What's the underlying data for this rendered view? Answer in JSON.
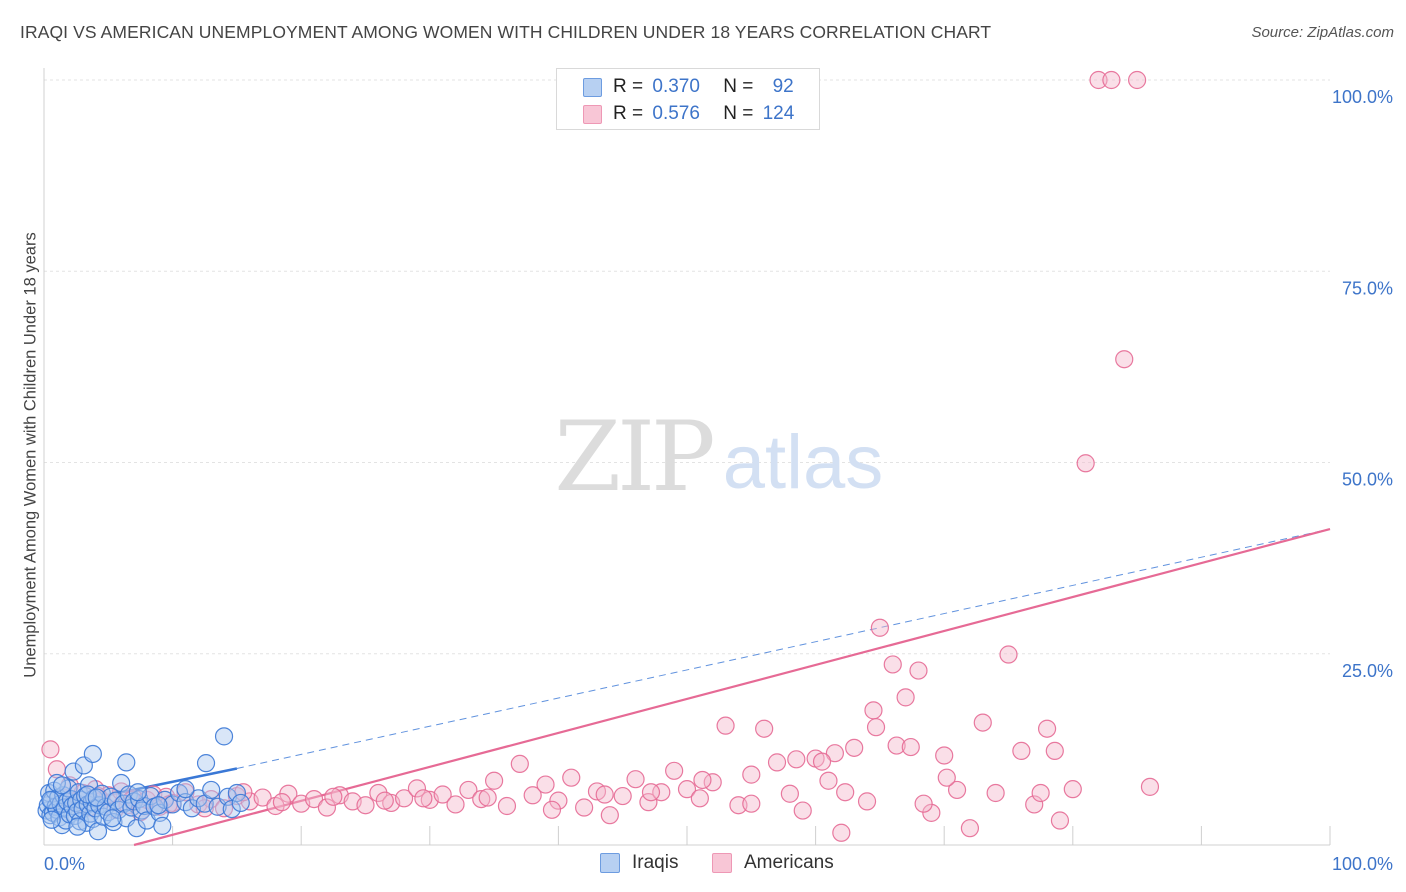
{
  "title": "IRAQI VS AMERICAN UNEMPLOYMENT AMONG WOMEN WITH CHILDREN UNDER 18 YEARS CORRELATION CHART",
  "source": "Source: ZipAtlas.com",
  "watermark": {
    "zip": "ZIP",
    "atlas": "atlas"
  },
  "colors": {
    "blue": "#3a78d6",
    "blue_fill": "#aac8f0",
    "pink": "#e66a95",
    "pink_fill": "#f5b8cc",
    "tick": "#3d74c9",
    "grid": "#e3e3e3"
  },
  "legend_top": {
    "rows": [
      {
        "r_label": "R =",
        "r_value": "0.370",
        "n_label": "N =",
        "n_value": "92"
      },
      {
        "r_label": "R =",
        "r_value": "0.576",
        "n_label": "N =",
        "n_value": "124"
      }
    ]
  },
  "legend_bottom": {
    "series": [
      {
        "label": "Iraqis"
      },
      {
        "label": "Americans"
      }
    ]
  },
  "chart_data": {
    "type": "scatter",
    "title": "IRAQI VS AMERICAN UNEMPLOYMENT AMONG WOMEN WITH CHILDREN UNDER 18 YEARS CORRELATION CHART",
    "xlabel": "",
    "ylabel": "Unemployment Among Women with Children Under 18 years",
    "xlim": [
      0,
      100
    ],
    "ylim": [
      0,
      100
    ],
    "x_tick_labels": [
      {
        "value": 0,
        "label": "0.0%"
      },
      {
        "value": 100,
        "label": "100.0%"
      }
    ],
    "y_tick_labels": [
      {
        "value": 25,
        "label": "25.0%"
      },
      {
        "value": 50,
        "label": "50.0%"
      },
      {
        "value": 75,
        "label": "75.0%"
      },
      {
        "value": 100,
        "label": "100.0%"
      }
    ],
    "series": [
      {
        "name": "Iraqis",
        "r": 0.37,
        "n": 92,
        "trend": {
          "x0": 0,
          "y0": 4.8,
          "x1": 15,
          "y1": 10.0,
          "dashed_extension_to": {
            "x": 100,
            "y": 41.3
          }
        },
        "points": [
          [
            0.2,
            4.5
          ],
          [
            0.3,
            5.2
          ],
          [
            0.4,
            6.8
          ],
          [
            0.5,
            3.9
          ],
          [
            0.6,
            5.8
          ],
          [
            0.7,
            4.2
          ],
          [
            0.8,
            7.1
          ],
          [
            0.9,
            5.0
          ],
          [
            1.0,
            4.6
          ],
          [
            1.1,
            6.2
          ],
          [
            1.2,
            3.6
          ],
          [
            1.3,
            5.4
          ],
          [
            1.4,
            2.6
          ],
          [
            1.5,
            6.5
          ],
          [
            1.6,
            4.9
          ],
          [
            1.7,
            3.2
          ],
          [
            1.8,
            5.7
          ],
          [
            1.9,
            7.4
          ],
          [
            2.0,
            4.0
          ],
          [
            2.1,
            6.0
          ],
          [
            2.2,
            5.1
          ],
          [
            2.3,
            9.6
          ],
          [
            2.4,
            3.8
          ],
          [
            2.5,
            5.5
          ],
          [
            2.6,
            4.4
          ],
          [
            2.7,
            6.9
          ],
          [
            2.8,
            3.1
          ],
          [
            2.9,
            5.9
          ],
          [
            3.0,
            4.7
          ],
          [
            3.1,
            10.4
          ],
          [
            3.2,
            6.4
          ],
          [
            3.3,
            2.9
          ],
          [
            3.4,
            5.3
          ],
          [
            3.5,
            7.8
          ],
          [
            3.6,
            4.1
          ],
          [
            3.7,
            5.6
          ],
          [
            3.8,
            3.4
          ],
          [
            3.9,
            6.1
          ],
          [
            4.0,
            4.8
          ],
          [
            4.2,
            1.8
          ],
          [
            4.3,
            5.2
          ],
          [
            4.5,
            6.7
          ],
          [
            4.6,
            3.7
          ],
          [
            4.8,
            5.0
          ],
          [
            5.0,
            4.3
          ],
          [
            5.2,
            6.3
          ],
          [
            5.4,
            3.0
          ],
          [
            5.6,
            5.8
          ],
          [
            5.8,
            4.6
          ],
          [
            6.0,
            8.1
          ],
          [
            6.2,
            5.4
          ],
          [
            6.4,
            3.5
          ],
          [
            6.6,
            6.6
          ],
          [
            6.8,
            4.9
          ],
          [
            7.0,
            5.7
          ],
          [
            7.2,
            2.2
          ],
          [
            7.4,
            6.0
          ],
          [
            7.6,
            4.5
          ],
          [
            7.8,
            5.1
          ],
          [
            8.0,
            3.2
          ],
          [
            8.3,
            6.4
          ],
          [
            8.6,
            5.0
          ],
          [
            9.0,
            4.2
          ],
          [
            9.4,
            5.9
          ],
          [
            10.0,
            5.3
          ],
          [
            10.5,
            6.8
          ],
          [
            11.0,
            5.6
          ],
          [
            11.5,
            4.8
          ],
          [
            12.0,
            6.1
          ],
          [
            12.5,
            5.4
          ],
          [
            13.0,
            7.2
          ],
          [
            13.5,
            5.0
          ],
          [
            14.0,
            14.2
          ],
          [
            14.3,
            6.3
          ],
          [
            14.6,
            4.7
          ],
          [
            15.0,
            6.8
          ],
          [
            15.3,
            5.5
          ],
          [
            3.8,
            11.9
          ],
          [
            9.2,
            2.5
          ],
          [
            1.0,
            8.1
          ],
          [
            6.4,
            10.8
          ],
          [
            3.4,
            6.6
          ],
          [
            0.5,
            5.9
          ],
          [
            0.6,
            3.3
          ],
          [
            1.4,
            7.8
          ],
          [
            2.6,
            2.4
          ],
          [
            4.1,
            6.2
          ],
          [
            5.3,
            3.5
          ],
          [
            7.3,
            6.9
          ],
          [
            8.9,
            5.2
          ],
          [
            12.6,
            10.7
          ],
          [
            11.0,
            7.3
          ]
        ]
      },
      {
        "name": "Americans",
        "r": 0.576,
        "n": 124,
        "trend": {
          "x0": 7,
          "y0": 0,
          "x1": 100,
          "y1": 41.3
        },
        "points": [
          [
            0.5,
            12.5
          ],
          [
            1.0,
            9.9
          ],
          [
            1.5,
            6.2
          ],
          [
            2.0,
            7.8
          ],
          [
            2.5,
            5.4
          ],
          [
            3.0,
            6.8
          ],
          [
            3.5,
            4.9
          ],
          [
            4.0,
            7.3
          ],
          [
            4.5,
            5.8
          ],
          [
            5.0,
            6.5
          ],
          [
            5.5,
            4.6
          ],
          [
            6.0,
            7.0
          ],
          [
            6.5,
            5.2
          ],
          [
            7.0,
            6.1
          ],
          [
            7.5,
            4.3
          ],
          [
            8.0,
            5.9
          ],
          [
            8.5,
            6.6
          ],
          [
            9.0,
            5.0
          ],
          [
            9.5,
            6.3
          ],
          [
            10.0,
            5.5
          ],
          [
            11.0,
            6.9
          ],
          [
            12.0,
            5.3
          ],
          [
            13.0,
            6.0
          ],
          [
            14.0,
            4.8
          ],
          [
            15.0,
            6.4
          ],
          [
            16.0,
            5.7
          ],
          [
            17.0,
            6.2
          ],
          [
            18.0,
            5.1
          ],
          [
            19.0,
            6.7
          ],
          [
            20.0,
            5.4
          ],
          [
            21.0,
            6.0
          ],
          [
            22.0,
            4.9
          ],
          [
            23.0,
            6.5
          ],
          [
            24.0,
            5.7
          ],
          [
            25.0,
            5.2
          ],
          [
            26.0,
            6.8
          ],
          [
            27.0,
            5.5
          ],
          [
            28.0,
            6.1
          ],
          [
            29.0,
            7.4
          ],
          [
            30.0,
            5.9
          ],
          [
            31.0,
            6.6
          ],
          [
            32.0,
            5.3
          ],
          [
            33.0,
            7.2
          ],
          [
            34.0,
            6.0
          ],
          [
            35.0,
            8.4
          ],
          [
            36.0,
            5.1
          ],
          [
            37.0,
            10.6
          ],
          [
            38.0,
            6.5
          ],
          [
            39.0,
            7.9
          ],
          [
            40.0,
            5.8
          ],
          [
            41.0,
            8.8
          ],
          [
            42.0,
            4.9
          ],
          [
            43.0,
            7.0
          ],
          [
            44.0,
            3.9
          ],
          [
            45.0,
            6.4
          ],
          [
            46.0,
            8.6
          ],
          [
            47.0,
            5.6
          ],
          [
            48.0,
            6.9
          ],
          [
            49.0,
            9.7
          ],
          [
            50.0,
            7.3
          ],
          [
            51.0,
            6.1
          ],
          [
            52.0,
            8.2
          ],
          [
            53.0,
            15.6
          ],
          [
            54.0,
            5.2
          ],
          [
            55.0,
            9.2
          ],
          [
            56.0,
            15.2
          ],
          [
            57.0,
            10.8
          ],
          [
            58.0,
            6.7
          ],
          [
            59.0,
            4.5
          ],
          [
            60.0,
            11.3
          ],
          [
            61.0,
            8.4
          ],
          [
            62.0,
            1.6
          ],
          [
            63.0,
            12.7
          ],
          [
            64.0,
            5.7
          ],
          [
            65.0,
            28.4
          ],
          [
            66.0,
            23.6
          ],
          [
            67.0,
            19.3
          ],
          [
            68.0,
            22.8
          ],
          [
            69.0,
            4.2
          ],
          [
            70.0,
            11.7
          ],
          [
            71.0,
            7.2
          ],
          [
            72.0,
            2.2
          ],
          [
            73.0,
            16.0
          ],
          [
            74.0,
            6.8
          ],
          [
            75.0,
            24.9
          ],
          [
            76.0,
            12.3
          ],
          [
            77.0,
            5.3
          ],
          [
            78.0,
            15.2
          ],
          [
            79.0,
            3.2
          ],
          [
            80.0,
            7.3
          ],
          [
            81.0,
            49.9
          ],
          [
            82.0,
            100.0
          ],
          [
            83.0,
            100.0
          ],
          [
            84.0,
            63.5
          ],
          [
            85.0,
            100.0
          ],
          [
            86.0,
            7.6
          ],
          [
            61.5,
            12.0
          ],
          [
            60.5,
            10.9
          ],
          [
            55.0,
            5.4
          ],
          [
            64.5,
            17.6
          ],
          [
            66.3,
            13.0
          ],
          [
            67.4,
            12.8
          ],
          [
            68.4,
            5.4
          ],
          [
            64.7,
            15.4
          ],
          [
            58.5,
            11.2
          ],
          [
            51.2,
            8.5
          ],
          [
            47.2,
            6.9
          ],
          [
            43.6,
            6.6
          ],
          [
            39.5,
            4.6
          ],
          [
            34.5,
            6.2
          ],
          [
            29.5,
            6.1
          ],
          [
            26.5,
            5.8
          ],
          [
            22.5,
            6.3
          ],
          [
            18.5,
            5.6
          ],
          [
            15.5,
            6.9
          ],
          [
            12.5,
            4.8
          ],
          [
            9.7,
            5.3
          ],
          [
            6.8,
            5.9
          ],
          [
            4.2,
            6.4
          ],
          [
            2.3,
            5.7
          ],
          [
            77.5,
            6.8
          ],
          [
            78.6,
            12.3
          ],
          [
            70.2,
            8.8
          ],
          [
            62.3,
            6.9
          ]
        ]
      }
    ]
  }
}
